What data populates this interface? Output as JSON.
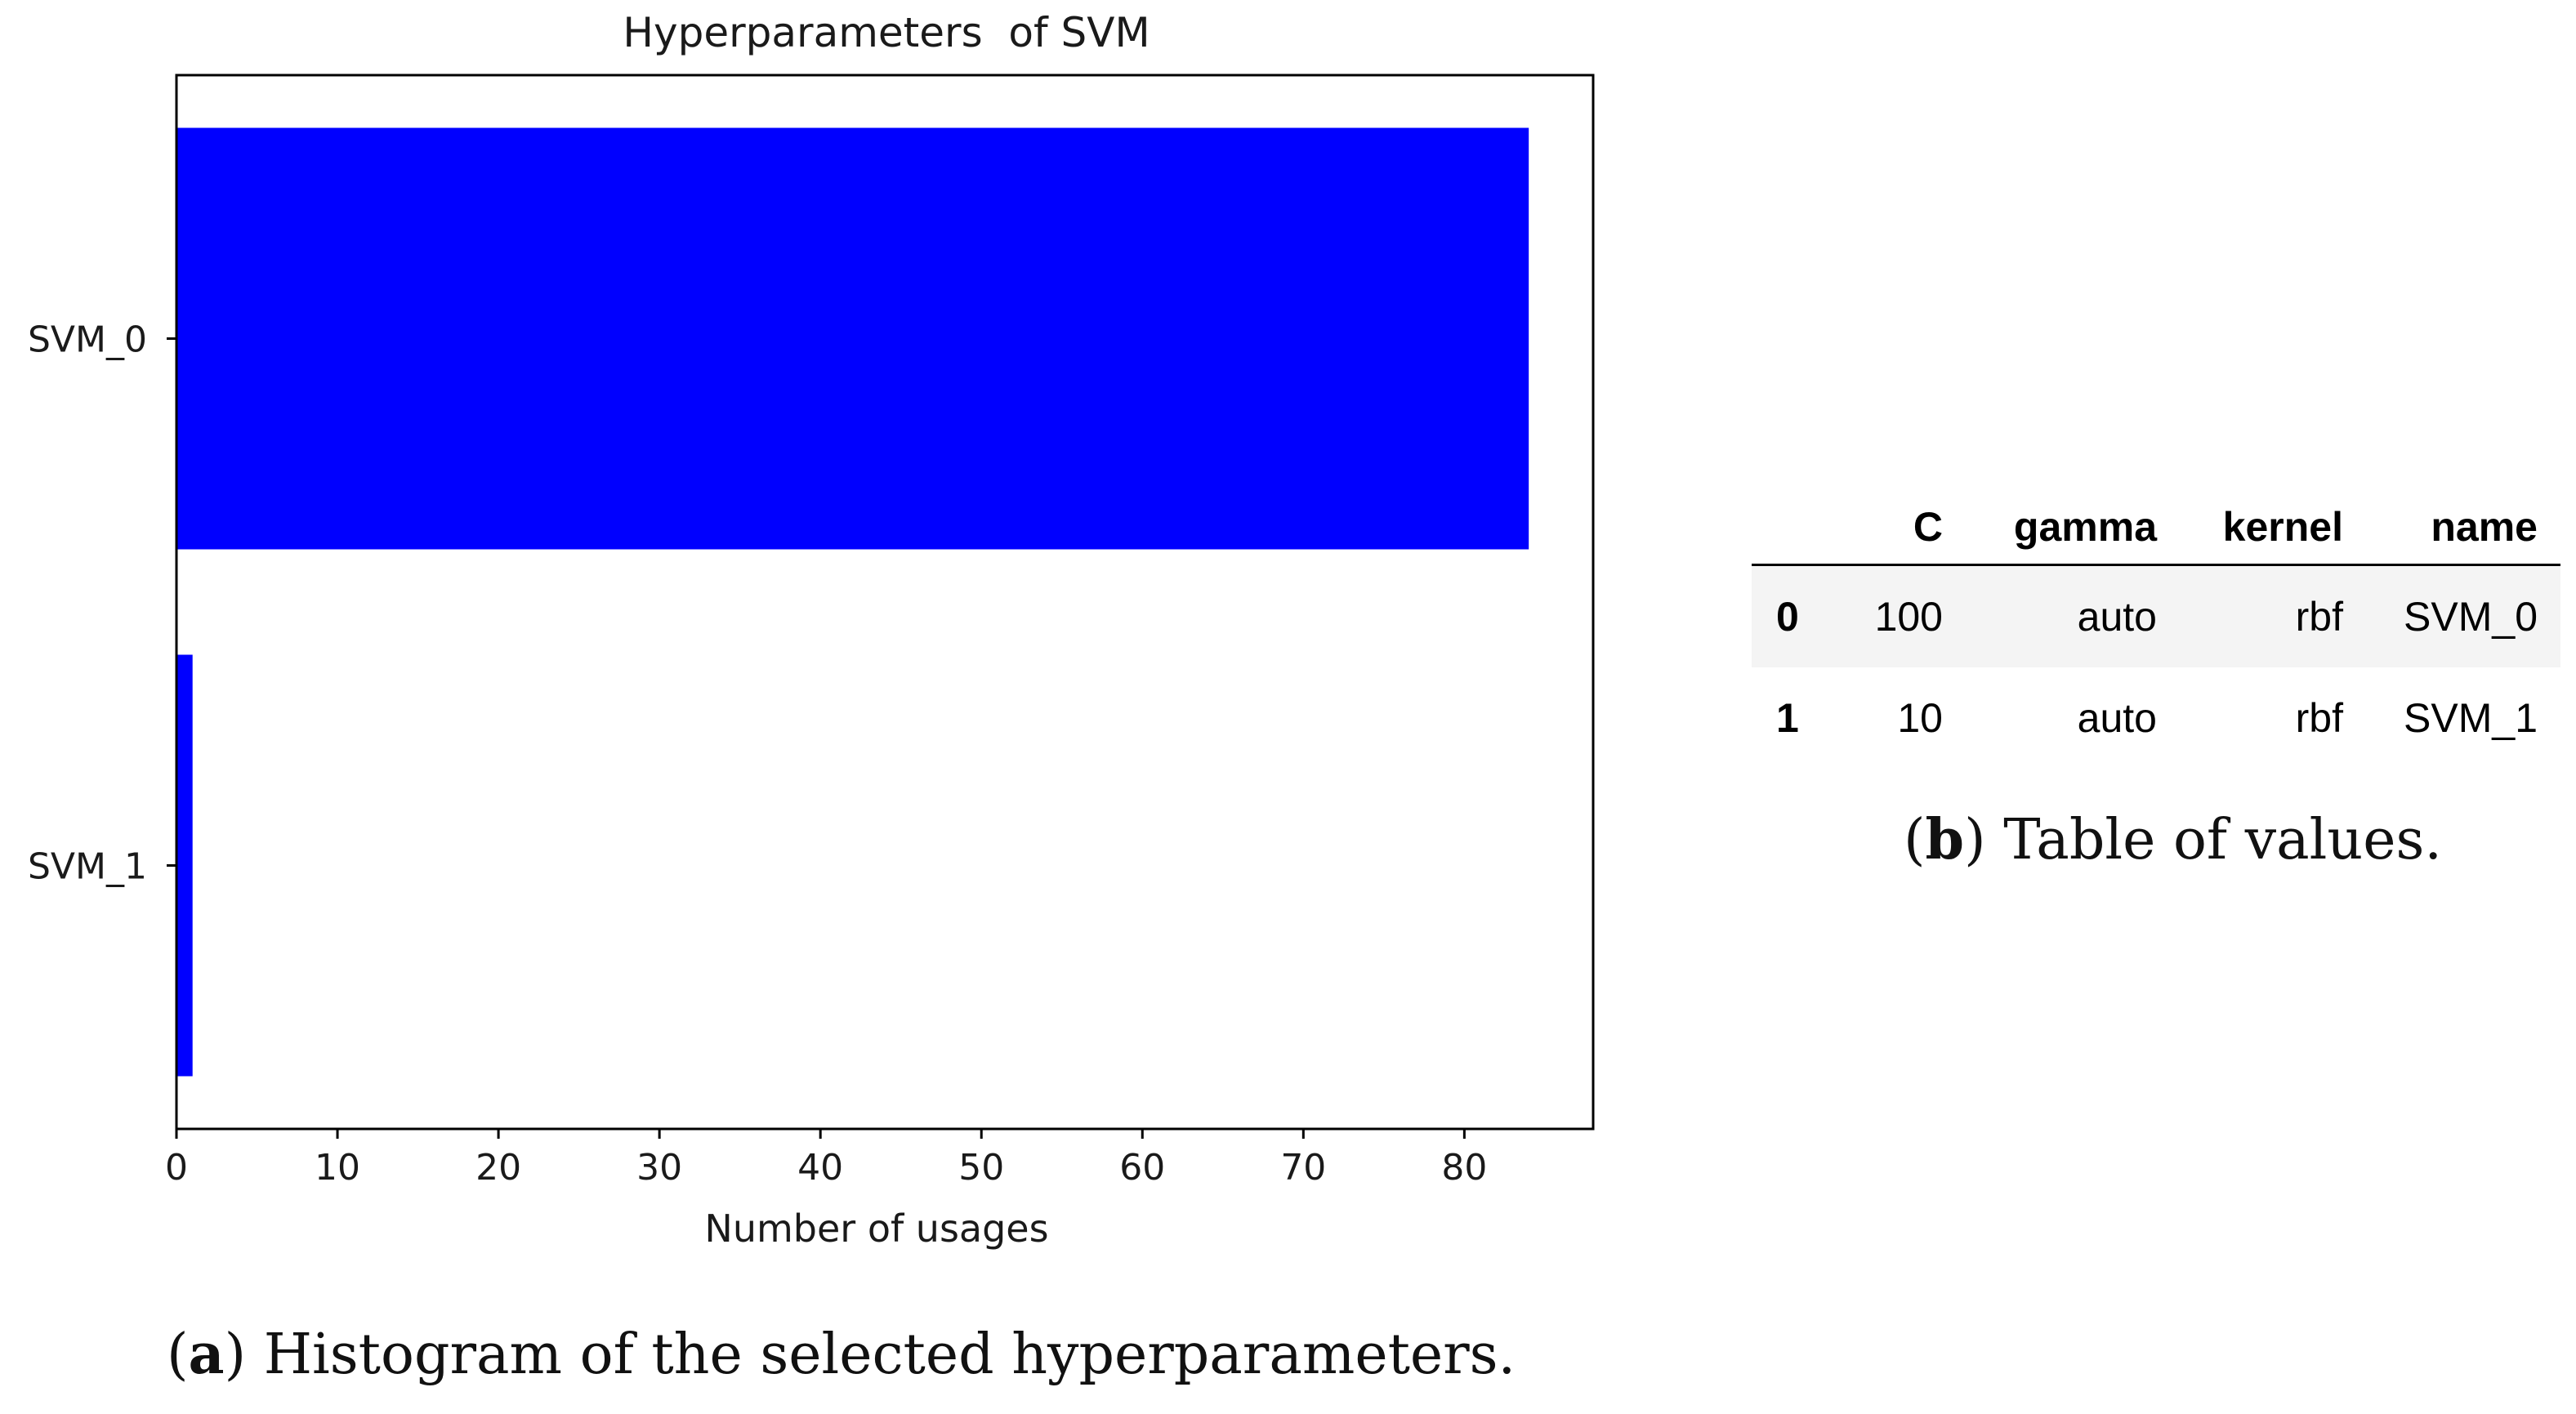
{
  "chart_data": {
    "type": "bar",
    "orientation": "horizontal",
    "title": "Hyperparameters  of SVM",
    "xlabel": "Number of usages",
    "ylabel": "",
    "categories": [
      "SVM_0",
      "SVM_1"
    ],
    "values": [
      84,
      1
    ],
    "xlim": [
      0,
      88
    ],
    "xticks": [
      0,
      10,
      20,
      30,
      40,
      50,
      60,
      70,
      80
    ],
    "grid": false,
    "bar_color": "#0000ff"
  },
  "table": {
    "columns": [
      "",
      "C",
      "gamma",
      "kernel",
      "name"
    ],
    "rows": [
      [
        "0",
        "100",
        "auto",
        "rbf",
        "SVM_0"
      ],
      [
        "1",
        "10",
        "auto",
        "rbf",
        "SVM_1"
      ]
    ]
  },
  "captions": {
    "a_label": "a",
    "a_text": " Histogram of the selected hyperparameters.",
    "b_label": "b",
    "b_text": " Table of values."
  }
}
